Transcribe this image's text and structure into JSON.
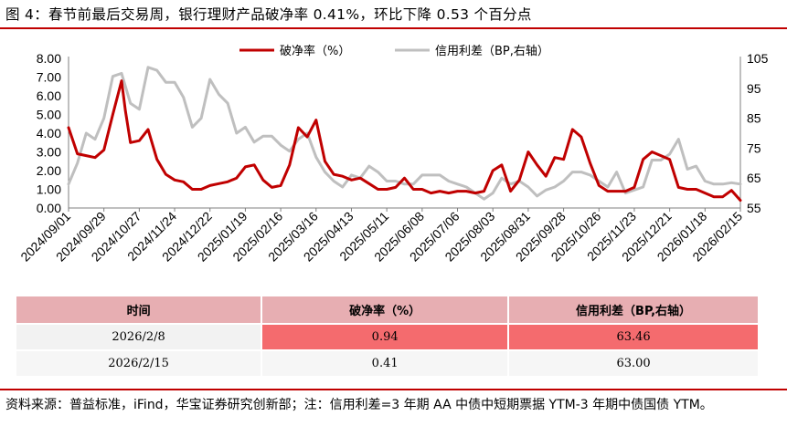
{
  "title": "图 4：春节前最后交易周，银行理财产品破净率 0.41%，环比下降 0.53 个百分点",
  "colors": {
    "accent": "#c00000",
    "series1": "#c00000",
    "series2": "#bfbfbf",
    "table_header": "#e7aeb2",
    "highlight": "#f46b6e"
  },
  "chart_data": {
    "type": "line",
    "x_ticks": [
      "2024/09/01",
      "2024/09/29",
      "2024/10/27",
      "2024/11/24",
      "2024/12/22",
      "2025/01/19",
      "2025/02/16",
      "2025/03/16",
      "2025/04/13",
      "2025/05/11",
      "2025/06/08",
      "2025/07/06",
      "2025/08/03",
      "2025/08/31",
      "2025/09/28",
      "2025/10/26",
      "2025/11/23",
      "2025/12/21",
      "2026/01/18",
      "2026/02/15"
    ],
    "yleft_ticks": [
      "0.00",
      "1.00",
      "2.00",
      "3.00",
      "4.00",
      "5.00",
      "6.00",
      "7.00",
      "8.00"
    ],
    "yright_ticks": [
      "55",
      "65",
      "75",
      "85",
      "95",
      "105"
    ],
    "ylim_left": [
      0,
      8
    ],
    "ylim_right": [
      55,
      105
    ],
    "legend": "top-center",
    "series": [
      {
        "name": "破净率（%）",
        "axis": "left",
        "x": [
          "2024-09-01",
          "2024-09-08",
          "2024-09-15",
          "2024-09-22",
          "2024-09-29",
          "2024-10-06",
          "2024-10-13",
          "2024-10-16",
          "2024-10-20",
          "2024-10-27",
          "2024-11-03",
          "2024-11-10",
          "2024-11-17",
          "2024-11-24",
          "2024-12-01",
          "2024-12-08",
          "2024-12-15",
          "2024-12-22",
          "2024-12-29",
          "2025-01-05",
          "2025-01-12",
          "2025-01-19",
          "2025-01-26",
          "2025-02-02",
          "2025-02-09",
          "2025-02-16",
          "2025-02-23",
          "2025-03-02",
          "2025-03-09",
          "2025-03-16",
          "2025-03-23",
          "2025-03-30",
          "2025-04-06",
          "2025-04-13",
          "2025-04-20",
          "2025-04-27",
          "2025-05-04",
          "2025-05-11",
          "2025-05-18",
          "2025-05-25",
          "2025-06-01",
          "2025-06-08",
          "2025-06-15",
          "2025-06-22",
          "2025-06-29",
          "2025-07-06",
          "2025-07-13",
          "2025-07-20",
          "2025-07-27",
          "2025-08-03",
          "2025-08-10",
          "2025-08-17",
          "2025-08-24",
          "2025-08-31",
          "2025-09-07",
          "2025-09-14",
          "2025-09-21",
          "2025-09-28",
          "2025-10-05",
          "2025-10-12",
          "2025-10-19",
          "2025-10-26",
          "2025-11-02",
          "2025-11-09",
          "2025-11-16",
          "2025-11-23",
          "2025-11-30",
          "2025-12-07",
          "2025-12-14",
          "2025-12-21",
          "2025-12-28",
          "2026-01-04",
          "2026-01-11",
          "2026-01-18",
          "2026-01-25",
          "2026-02-01",
          "2026-02-08",
          "2026-02-15"
        ],
        "values": [
          4.3,
          2.9,
          2.8,
          2.7,
          3.1,
          5.0,
          6.8,
          5.2,
          3.5,
          3.6,
          4.2,
          2.6,
          1.8,
          1.5,
          1.4,
          1.0,
          1.0,
          1.2,
          1.3,
          1.4,
          1.6,
          2.2,
          2.3,
          1.5,
          1.1,
          1.2,
          2.3,
          4.3,
          3.8,
          4.7,
          2.5,
          1.8,
          1.7,
          1.5,
          1.6,
          1.3,
          1.0,
          1.0,
          1.1,
          1.6,
          1.0,
          1.0,
          0.8,
          0.9,
          0.8,
          0.9,
          0.9,
          0.8,
          0.9,
          2.0,
          2.3,
          0.9,
          1.5,
          3.0,
          2.3,
          1.7,
          2.7,
          2.6,
          4.2,
          3.8,
          2.4,
          1.2,
          0.9,
          0.9,
          0.9,
          1.1,
          2.6,
          3.0,
          2.8,
          2.6,
          1.1,
          1.0,
          1.0,
          0.8,
          0.6,
          0.6,
          0.94,
          0.41
        ]
      },
      {
        "name": "信用利差（BP,右轴）",
        "axis": "right",
        "x": [
          "2024-09-01",
          "2024-09-08",
          "2024-09-15",
          "2024-09-22",
          "2024-09-29",
          "2024-10-06",
          "2024-10-13",
          "2024-10-20",
          "2024-10-27",
          "2024-11-03",
          "2024-11-10",
          "2024-11-17",
          "2024-11-24",
          "2024-12-01",
          "2024-12-08",
          "2024-12-15",
          "2024-12-22",
          "2024-12-29",
          "2025-01-05",
          "2025-01-12",
          "2025-01-19",
          "2025-01-26",
          "2025-02-02",
          "2025-02-09",
          "2025-02-16",
          "2025-02-23",
          "2025-03-02",
          "2025-03-09",
          "2025-03-16",
          "2025-03-23",
          "2025-03-30",
          "2025-04-06",
          "2025-04-13",
          "2025-04-20",
          "2025-04-27",
          "2025-05-04",
          "2025-05-11",
          "2025-05-18",
          "2025-05-25",
          "2025-06-01",
          "2025-06-08",
          "2025-06-15",
          "2025-06-22",
          "2025-06-29",
          "2025-07-06",
          "2025-07-13",
          "2025-07-20",
          "2025-07-27",
          "2025-08-03",
          "2025-08-10",
          "2025-08-17",
          "2025-08-24",
          "2025-08-31",
          "2025-09-07",
          "2025-09-14",
          "2025-09-21",
          "2025-09-28",
          "2025-10-05",
          "2025-10-12",
          "2025-10-19",
          "2025-10-26",
          "2025-11-02",
          "2025-11-09",
          "2025-11-16",
          "2025-11-23",
          "2025-11-30",
          "2025-12-07",
          "2025-12-14",
          "2025-12-21",
          "2025-12-28",
          "2026-01-04",
          "2026-01-11",
          "2026-01-18",
          "2026-01-25",
          "2026-02-01",
          "2026-02-08",
          "2026-02-15"
        ],
        "values": [
          63,
          70,
          80,
          78,
          85,
          99,
          100,
          90,
          88,
          102,
          101,
          97,
          97,
          92,
          82,
          85,
          98,
          93,
          90,
          80,
          82,
          77,
          79,
          79,
          76,
          74,
          78,
          80,
          72,
          67,
          64,
          62,
          66,
          65,
          69,
          67,
          64,
          64,
          63,
          63,
          66,
          66,
          66,
          64,
          63,
          62,
          60,
          58,
          60,
          65,
          63,
          64,
          62,
          59,
          61,
          62,
          64,
          67,
          67,
          66,
          64,
          62,
          67,
          60,
          61,
          62,
          71,
          71,
          73,
          78,
          68,
          69,
          64,
          63,
          63,
          63.46,
          63.0
        ]
      }
    ]
  },
  "table": {
    "headers": [
      "时间",
      "破净率（%）",
      "信用利差（BP,右轴）"
    ],
    "rows": [
      [
        "2026/2/8",
        "0.94",
        "63.46"
      ],
      [
        "2026/2/15",
        "0.41",
        "63.00"
      ]
    ]
  },
  "source": "资料来源：普益标准，iFind，华宝证券研究创新部；注：信用利差=3 年期 AA 中债中短期票据 YTM-3 年期中债国债 YTM。"
}
